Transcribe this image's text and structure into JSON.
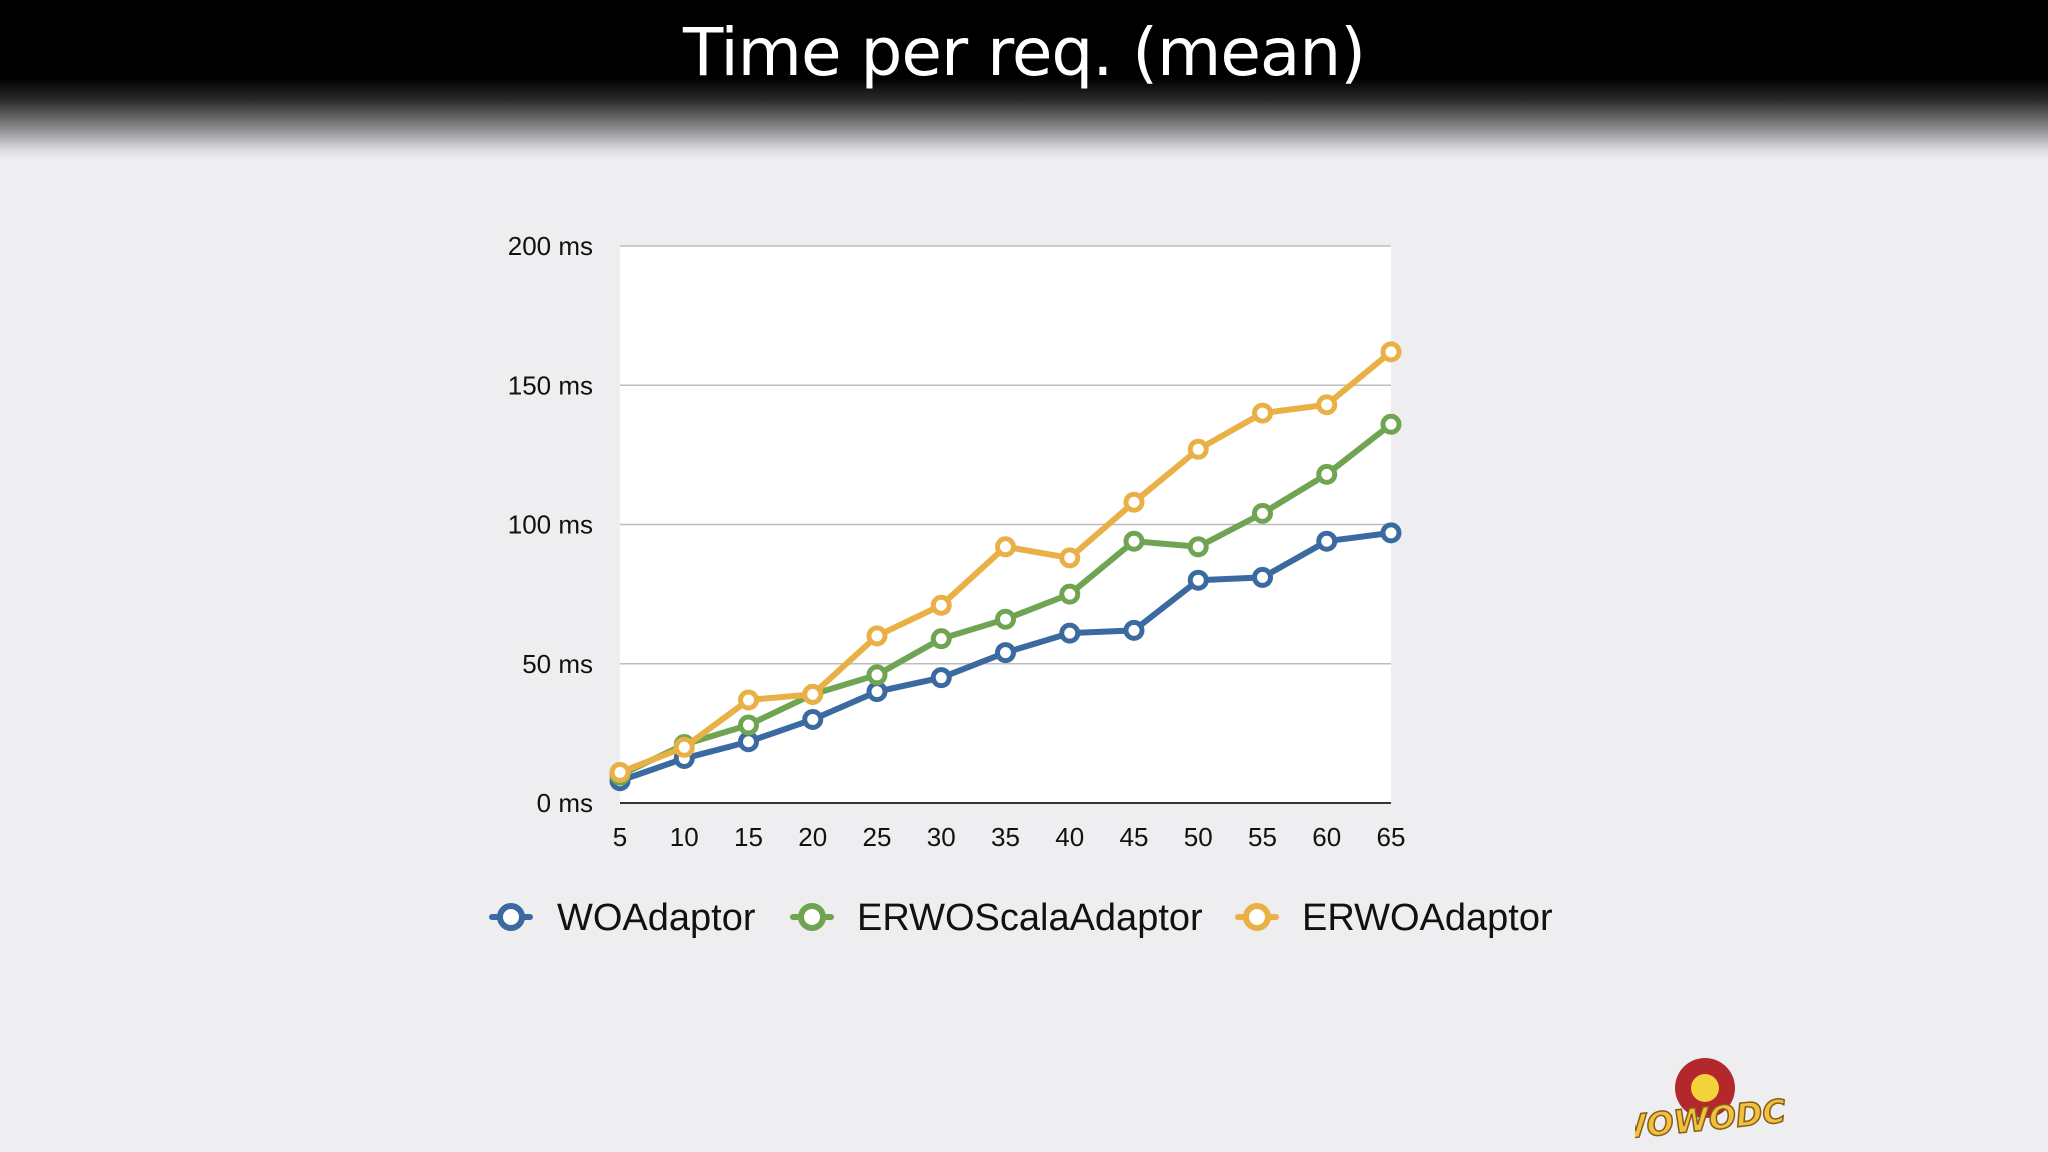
{
  "slide": {
    "title": "Time per req. (mean)",
    "logo_text": "WOWODC!"
  },
  "colors": {
    "WOAdaptor": "#3b6aa0",
    "ERWOScalaAdaptor": "#6fa453",
    "ERWOAdaptor": "#e9b046",
    "grid": "#bdbdbd",
    "plot_bg": "#ffffff"
  },
  "chart_data": {
    "type": "line",
    "title": "",
    "xlabel": "",
    "ylabel": "",
    "x": [
      5,
      10,
      15,
      20,
      25,
      30,
      35,
      40,
      45,
      50,
      55,
      60,
      65
    ],
    "x_tick_labels": [
      "5",
      "10",
      "15",
      "20",
      "25",
      "30",
      "35",
      "40",
      "45",
      "50",
      "55",
      "60",
      "65"
    ],
    "ylim": [
      0,
      200
    ],
    "y_ticks": [
      0,
      50,
      100,
      150,
      200
    ],
    "y_tick_labels": [
      "0 ms",
      "50 ms",
      "100 ms",
      "150 ms",
      "200 ms"
    ],
    "grid": true,
    "legend_position": "bottom",
    "series": [
      {
        "name": "WOAdaptor",
        "values": [
          8,
          16,
          22,
          30,
          40,
          45,
          54,
          61,
          62,
          80,
          81,
          94,
          97
        ]
      },
      {
        "name": "ERWOScalaAdaptor",
        "values": [
          10,
          21,
          28,
          39,
          46,
          59,
          66,
          75,
          94,
          92,
          104,
          118,
          136
        ]
      },
      {
        "name": "ERWOAdaptor",
        "values": [
          11,
          20,
          37,
          39,
          60,
          71,
          92,
          88,
          108,
          127,
          140,
          143,
          162
        ]
      }
    ]
  }
}
